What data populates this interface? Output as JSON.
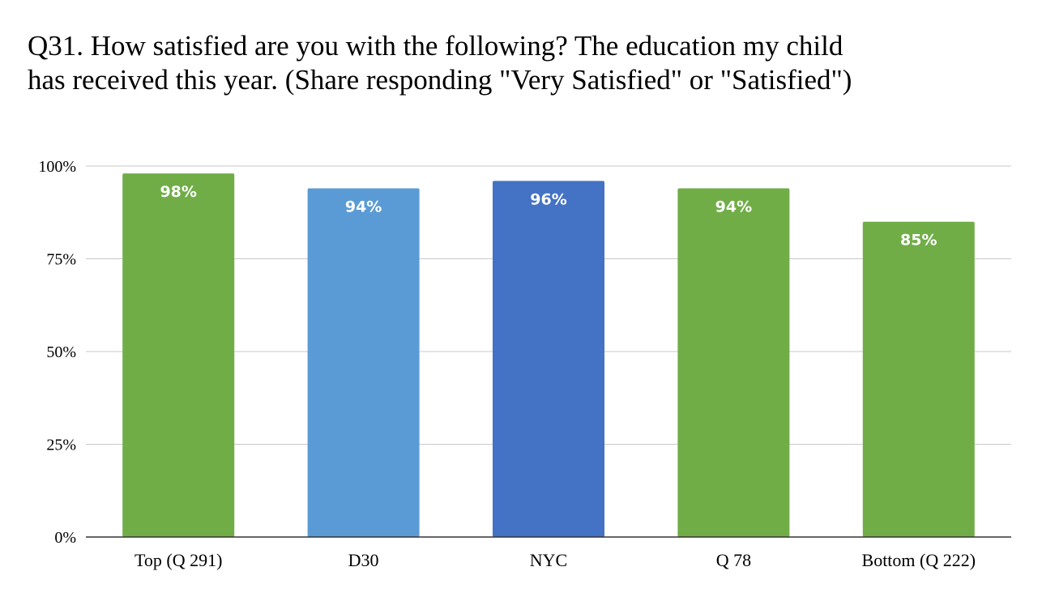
{
  "chart_data": {
    "type": "bar",
    "title_lines": [
      "Q31. How satisfied are you with the following? The education my child",
      "has received this year. (Share responding \"Very Satisfied\" or \"Satisfied\")"
    ],
    "categories": [
      "Top (Q 291)",
      "D30",
      "NYC",
      "Q 78",
      "Bottom (Q 222)"
    ],
    "values": [
      98,
      94,
      96,
      94,
      85
    ],
    "data_labels": [
      "98%",
      "94%",
      "96%",
      "94%",
      "85%"
    ],
    "bar_colors": [
      "#70ad47",
      "#5b9bd5",
      "#4472c4",
      "#70ad47",
      "#70ad47"
    ],
    "ylim": [
      0,
      100
    ],
    "yticks": [
      0,
      25,
      50,
      75,
      100
    ],
    "ytick_labels": [
      "0%",
      "25%",
      "50%",
      "75%",
      "100%"
    ],
    "grid": true,
    "legend": "none",
    "xlabel": "",
    "ylabel": ""
  }
}
